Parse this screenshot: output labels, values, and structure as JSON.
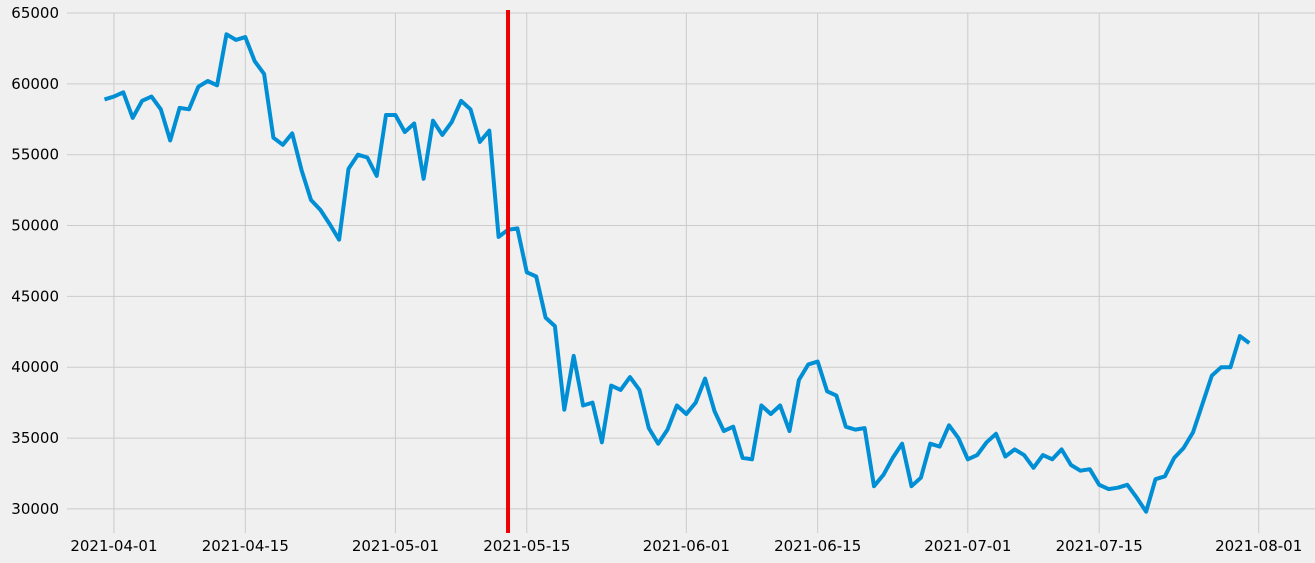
{
  "chart_data": {
    "type": "line",
    "title": "",
    "xlabel": "",
    "ylabel": "",
    "grid": true,
    "x_range": [
      "2021-03-27",
      "2021-08-07"
    ],
    "ylim": [
      28300,
      65000
    ],
    "x_ticks": [
      "2021-04-01",
      "2021-04-15",
      "2021-05-01",
      "2021-05-15",
      "2021-06-01",
      "2021-06-15",
      "2021-07-01",
      "2021-07-15",
      "2021-08-01"
    ],
    "y_ticks": [
      30000,
      35000,
      40000,
      45000,
      50000,
      55000,
      60000,
      65000
    ],
    "vline": {
      "x": "2021-05-13",
      "color": "#ee0000"
    },
    "series": [
      {
        "color": "#008fd5",
        "start_date": "2021-03-31",
        "values": [
          58900,
          59100,
          59400,
          57600,
          58800,
          59100,
          58200,
          56000,
          58300,
          58200,
          59800,
          60200,
          59900,
          63500,
          63100,
          63300,
          61600,
          60700,
          56200,
          55700,
          56500,
          53900,
          51800,
          51100,
          50100,
          49000,
          54000,
          55000,
          54800,
          53500,
          57800,
          57800,
          56600,
          57200,
          53300,
          57400,
          56400,
          57300,
          58800,
          58200,
          55900,
          56700,
          49200,
          49700,
          49800,
          46700,
          46400,
          43500,
          42900,
          37000,
          40800,
          37300,
          37500,
          34700,
          38700,
          38400,
          39300,
          38400,
          35700,
          34600,
          35600,
          37300,
          36700,
          37500,
          39200,
          36900,
          35500,
          35800,
          33600,
          33500,
          37300,
          36700,
          37300,
          35500,
          39100,
          40200,
          40400,
          38300,
          38000,
          35800,
          35600,
          35700,
          31600,
          32400,
          33600,
          34600,
          31600,
          32200,
          34600,
          34400,
          35900,
          35000,
          33500,
          33800,
          34700,
          35300,
          33700,
          34200,
          33800,
          32900,
          33800,
          33500,
          34200,
          33100,
          32700,
          32800,
          31700,
          31400,
          31500,
          31700,
          30800,
          29800,
          32100,
          32300,
          33600,
          34300,
          35400,
          37400,
          39400,
          40000,
          40000,
          42200,
          41700
        ]
      }
    ]
  }
}
